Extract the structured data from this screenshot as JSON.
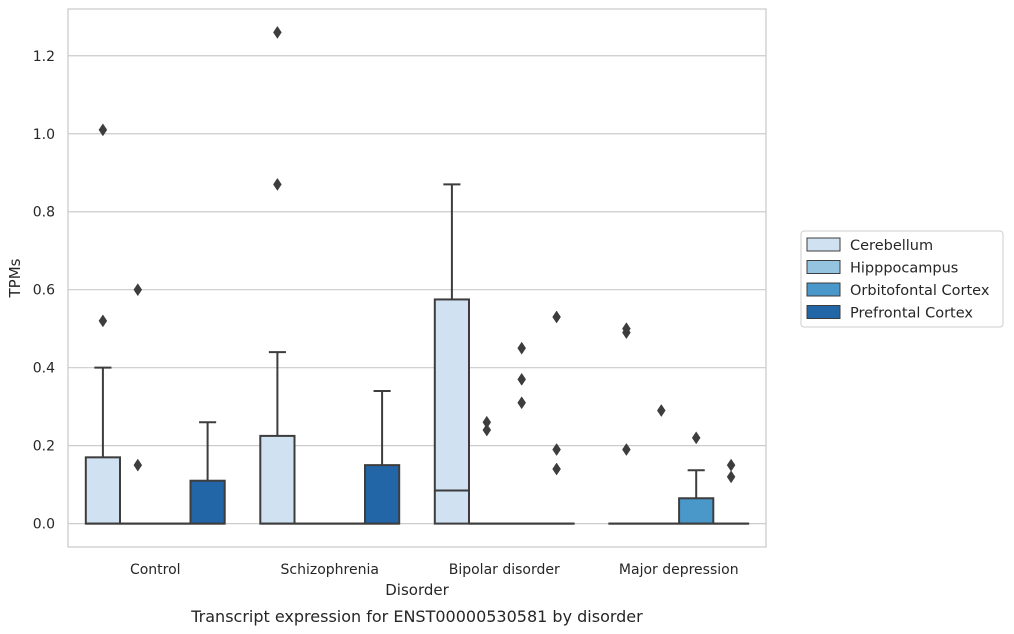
{
  "chart_data": {
    "type": "box",
    "title": "",
    "caption": "Transcript expression for ENST00000530581 by disorder",
    "xlabel": "Disorder",
    "ylabel": "TPMs",
    "ylim": [
      -0.06,
      1.32
    ],
    "yticks": [
      "0.0",
      "0.2",
      "0.4",
      "0.6",
      "0.8",
      "1.0",
      "1.2"
    ],
    "grid": "horizontal",
    "legend_position": "right",
    "categories": [
      "Control",
      "Schizophrenia",
      "Bipolar disorder",
      "Major depression"
    ],
    "series": [
      {
        "name": "Cerebellum",
        "color": "#d0e1f2",
        "boxes": [
          {
            "q1": 0,
            "median": 0,
            "q3": 0.17,
            "whisker_low": 0,
            "whisker_high": 0.4,
            "outliers": [
              0.52,
              1.01
            ]
          },
          {
            "q1": 0,
            "median": 0,
            "q3": 0.225,
            "whisker_low": 0,
            "whisker_high": 0.44,
            "outliers": [
              0.87,
              1.26
            ]
          },
          {
            "q1": 0,
            "median": 0.085,
            "q3": 0.575,
            "whisker_low": 0,
            "whisker_high": 0.87,
            "outliers": []
          },
          {
            "q1": 0,
            "median": 0,
            "q3": 0,
            "whisker_low": 0,
            "whisker_high": 0,
            "outliers": [
              0.19,
              0.49,
              0.5
            ]
          }
        ]
      },
      {
        "name": "Hipppocampus",
        "color": "#94c4df",
        "boxes": [
          {
            "q1": 0,
            "median": 0,
            "q3": 0,
            "whisker_low": 0,
            "whisker_high": 0,
            "outliers": [
              0.15,
              0.6
            ]
          },
          {
            "q1": 0,
            "median": 0,
            "q3": 0,
            "whisker_low": 0,
            "whisker_high": 0,
            "outliers": []
          },
          {
            "q1": 0,
            "median": 0,
            "q3": 0,
            "whisker_low": 0,
            "whisker_high": 0,
            "outliers": [
              0.24,
              0.26
            ]
          },
          {
            "q1": 0,
            "median": 0,
            "q3": 0,
            "whisker_low": 0,
            "whisker_high": 0,
            "outliers": [
              0.29
            ]
          }
        ]
      },
      {
        "name": "Orbitofontal Cortex",
        "color": "#4a98c9",
        "boxes": [
          {
            "q1": 0,
            "median": 0,
            "q3": 0,
            "whisker_low": 0,
            "whisker_high": 0,
            "outliers": []
          },
          {
            "q1": 0,
            "median": 0,
            "q3": 0,
            "whisker_low": 0,
            "whisker_high": 0,
            "outliers": []
          },
          {
            "q1": 0,
            "median": 0,
            "q3": 0,
            "whisker_low": 0,
            "whisker_high": 0,
            "outliers": [
              0.31,
              0.37,
              0.45
            ]
          },
          {
            "q1": 0,
            "median": 0,
            "q3": 0.065,
            "whisker_low": 0,
            "whisker_high": 0.137,
            "outliers": [
              0.22
            ]
          }
        ]
      },
      {
        "name": "Prefrontal Cortex",
        "color": "#2366a8",
        "boxes": [
          {
            "q1": 0,
            "median": 0,
            "q3": 0.11,
            "whisker_low": 0,
            "whisker_high": 0.26,
            "outliers": []
          },
          {
            "q1": 0,
            "median": 0,
            "q3": 0.15,
            "whisker_low": 0,
            "whisker_high": 0.34,
            "outliers": []
          },
          {
            "q1": 0,
            "median": 0,
            "q3": 0,
            "whisker_low": 0,
            "whisker_high": 0,
            "outliers": [
              0.14,
              0.19,
              0.53
            ]
          },
          {
            "q1": 0,
            "median": 0,
            "q3": 0,
            "whisker_low": 0,
            "whisker_high": 0,
            "outliers": [
              0.12,
              0.15
            ]
          }
        ]
      }
    ]
  }
}
